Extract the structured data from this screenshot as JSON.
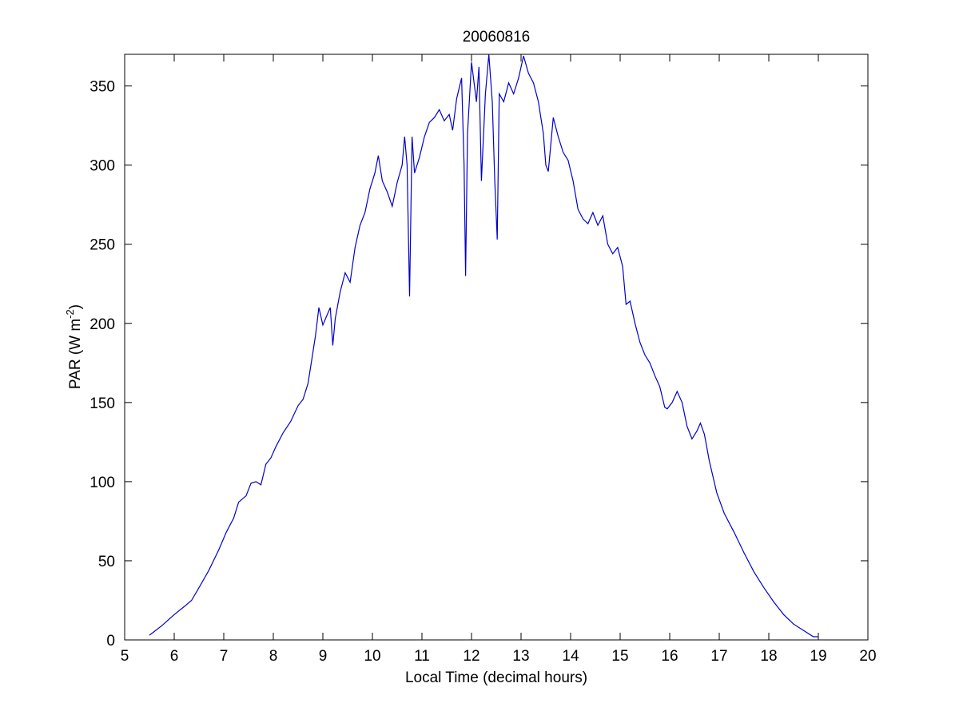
{
  "chart_data": {
    "type": "line",
    "title": "20060816",
    "xlabel": "Local Time (decimal hours)",
    "ylabel": {
      "main": "PAR (W m",
      "superscript": "-2",
      "close": ")"
    },
    "xlim": [
      5,
      20
    ],
    "ylim": [
      0,
      370
    ],
    "xticks": [
      5,
      6,
      7,
      8,
      9,
      10,
      11,
      12,
      13,
      14,
      15,
      16,
      17,
      18,
      19,
      20
    ],
    "yticks": [
      0,
      50,
      100,
      150,
      200,
      250,
      300,
      350
    ],
    "xtick_labels": [
      "5",
      "6",
      "7",
      "8",
      "9",
      "10",
      "11",
      "12",
      "13",
      "14",
      "15",
      "16",
      "17",
      "18",
      "19",
      "20"
    ],
    "ytick_labels": [
      "0",
      "50",
      "100",
      "150",
      "200",
      "250",
      "300",
      "350"
    ],
    "grid": false,
    "series": [
      {
        "color": "#0000cc",
        "points": [
          [
            5.5,
            3
          ],
          [
            5.75,
            9
          ],
          [
            6.0,
            16
          ],
          [
            6.2,
            21
          ],
          [
            6.35,
            25
          ],
          [
            6.5,
            33
          ],
          [
            6.7,
            44
          ],
          [
            6.9,
            57
          ],
          [
            7.05,
            68
          ],
          [
            7.2,
            77
          ],
          [
            7.3,
            87
          ],
          [
            7.45,
            91
          ],
          [
            7.55,
            99
          ],
          [
            7.65,
            100
          ],
          [
            7.75,
            98
          ],
          [
            7.85,
            111
          ],
          [
            7.95,
            115
          ],
          [
            8.05,
            122
          ],
          [
            8.2,
            131
          ],
          [
            8.35,
            138
          ],
          [
            8.5,
            148
          ],
          [
            8.6,
            152
          ],
          [
            8.7,
            162
          ],
          [
            8.78,
            178
          ],
          [
            8.85,
            192
          ],
          [
            8.92,
            210
          ],
          [
            9.0,
            199
          ],
          [
            9.08,
            205
          ],
          [
            9.15,
            210
          ],
          [
            9.2,
            186
          ],
          [
            9.25,
            203
          ],
          [
            9.35,
            220
          ],
          [
            9.45,
            232
          ],
          [
            9.55,
            226
          ],
          [
            9.65,
            248
          ],
          [
            9.75,
            262
          ],
          [
            9.85,
            270
          ],
          [
            9.95,
            285
          ],
          [
            10.05,
            295
          ],
          [
            10.12,
            306
          ],
          [
            10.2,
            290
          ],
          [
            10.3,
            283
          ],
          [
            10.4,
            274
          ],
          [
            10.5,
            289
          ],
          [
            10.6,
            300
          ],
          [
            10.65,
            318
          ],
          [
            10.7,
            300
          ],
          [
            10.75,
            217
          ],
          [
            10.8,
            318
          ],
          [
            10.85,
            295
          ],
          [
            10.95,
            305
          ],
          [
            11.05,
            318
          ],
          [
            11.15,
            327
          ],
          [
            11.25,
            330
          ],
          [
            11.35,
            335
          ],
          [
            11.45,
            328
          ],
          [
            11.55,
            332
          ],
          [
            11.62,
            322
          ],
          [
            11.7,
            342
          ],
          [
            11.8,
            355
          ],
          [
            11.85,
            300
          ],
          [
            11.88,
            230
          ],
          [
            11.92,
            320
          ],
          [
            12.0,
            365
          ],
          [
            12.1,
            340
          ],
          [
            12.15,
            362
          ],
          [
            12.2,
            290
          ],
          [
            12.28,
            345
          ],
          [
            12.35,
            370
          ],
          [
            12.42,
            340
          ],
          [
            12.47,
            290
          ],
          [
            12.52,
            253
          ],
          [
            12.56,
            345
          ],
          [
            12.65,
            340
          ],
          [
            12.75,
            352
          ],
          [
            12.85,
            345
          ],
          [
            12.95,
            355
          ],
          [
            13.05,
            369
          ],
          [
            13.15,
            358
          ],
          [
            13.25,
            352
          ],
          [
            13.35,
            340
          ],
          [
            13.45,
            320
          ],
          [
            13.5,
            300
          ],
          [
            13.55,
            296
          ],
          [
            13.65,
            330
          ],
          [
            13.75,
            318
          ],
          [
            13.85,
            308
          ],
          [
            13.95,
            303
          ],
          [
            14.05,
            290
          ],
          [
            14.15,
            272
          ],
          [
            14.25,
            266
          ],
          [
            14.35,
            263
          ],
          [
            14.45,
            270
          ],
          [
            14.55,
            262
          ],
          [
            14.65,
            268
          ],
          [
            14.75,
            250
          ],
          [
            14.85,
            244
          ],
          [
            14.95,
            248
          ],
          [
            15.05,
            236
          ],
          [
            15.12,
            212
          ],
          [
            15.2,
            214
          ],
          [
            15.3,
            200
          ],
          [
            15.4,
            188
          ],
          [
            15.5,
            180
          ],
          [
            15.6,
            175
          ],
          [
            15.7,
            167
          ],
          [
            15.8,
            160
          ],
          [
            15.9,
            147
          ],
          [
            15.95,
            146
          ],
          [
            16.05,
            150
          ],
          [
            16.15,
            157
          ],
          [
            16.25,
            150
          ],
          [
            16.35,
            135
          ],
          [
            16.45,
            127
          ],
          [
            16.55,
            132
          ],
          [
            16.62,
            137
          ],
          [
            16.7,
            130
          ],
          [
            16.8,
            113
          ],
          [
            16.95,
            93
          ],
          [
            17.1,
            80
          ],
          [
            17.3,
            68
          ],
          [
            17.5,
            55
          ],
          [
            17.7,
            43
          ],
          [
            17.9,
            33
          ],
          [
            18.1,
            24
          ],
          [
            18.3,
            16
          ],
          [
            18.5,
            10
          ],
          [
            18.7,
            6
          ],
          [
            18.9,
            2
          ],
          [
            19.0,
            2
          ]
        ]
      }
    ]
  }
}
